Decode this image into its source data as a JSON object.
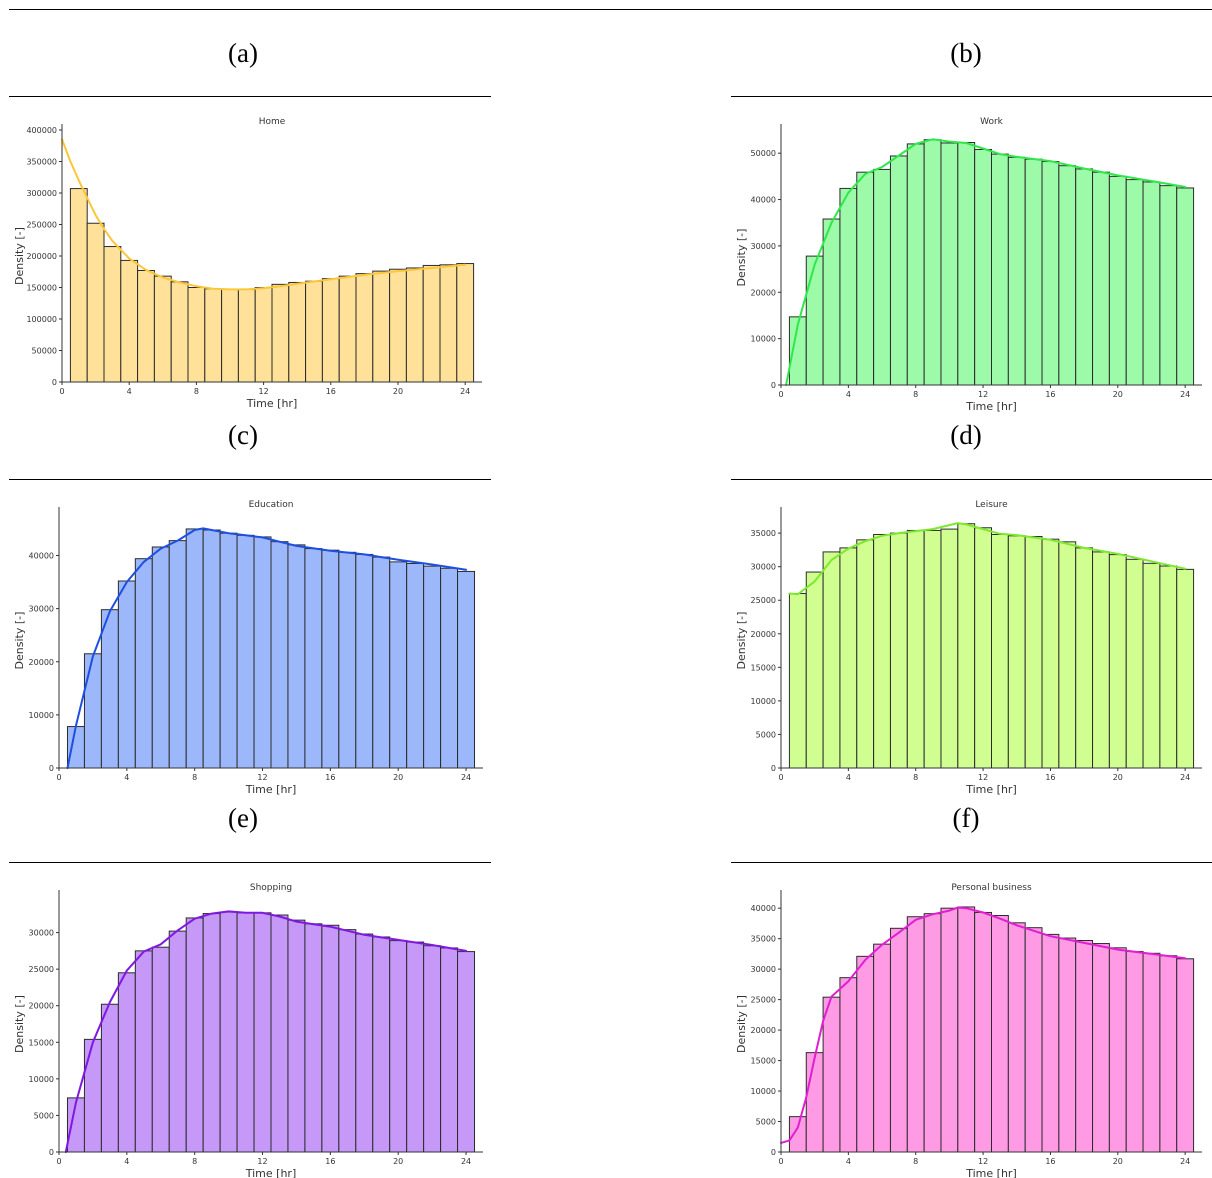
{
  "captions": [
    "(a)",
    "(b)",
    "(c)",
    "(d)",
    "(e)",
    "(f)"
  ],
  "chart_data": [
    {
      "type": "bar",
      "title": "Home",
      "xlabel": "Time [hr]",
      "ylabel": "Density [-]",
      "color": "#fcc63a",
      "fill": "#ffe19a",
      "xlim": [
        0,
        25
      ],
      "ylim": [
        0,
        400000
      ],
      "xticks": [
        0,
        4,
        8,
        12,
        16,
        20,
        24
      ],
      "yticks": [
        0,
        50000,
        100000,
        150000,
        200000,
        250000,
        300000,
        350000,
        400000
      ],
      "bin_start": 0.5,
      "bin_width": 1,
      "values": [
        307000,
        252000,
        215000,
        193000,
        177000,
        168000,
        159000,
        150000,
        148000,
        147000,
        147000,
        150000,
        155000,
        158000,
        160000,
        164000,
        168000,
        172000,
        176000,
        179000,
        181000,
        185000,
        186000,
        188000
      ],
      "kde_x": [
        0,
        0.5,
        1,
        1.5,
        2,
        2.5,
        3,
        4,
        5,
        6,
        7,
        8,
        9,
        10,
        11,
        12,
        13,
        14,
        16,
        18,
        20,
        22,
        24
      ],
      "kde_y": [
        385000,
        350000,
        320000,
        292000,
        265000,
        243000,
        224000,
        196000,
        178000,
        166000,
        158000,
        152000,
        148000,
        147000,
        147000,
        149000,
        152000,
        156000,
        163000,
        170000,
        176000,
        181000,
        186000
      ]
    },
    {
      "type": "bar",
      "title": "Work",
      "xlabel": "Time [hr]",
      "ylabel": "Density [-]",
      "color": "#2ee84a",
      "fill": "#9dfaa8",
      "xlim": [
        0,
        25
      ],
      "ylim": [
        0,
        55000
      ],
      "xticks": [
        0,
        4,
        8,
        12,
        16,
        20,
        24
      ],
      "yticks": [
        0,
        10000,
        20000,
        30000,
        40000,
        50000
      ],
      "bin_start": 0.5,
      "bin_width": 1,
      "values": [
        14700,
        27800,
        35800,
        42400,
        45900,
        46500,
        49400,
        52000,
        52900,
        52200,
        52300,
        50800,
        49800,
        49100,
        48700,
        48200,
        47300,
        46600,
        45900,
        45000,
        44300,
        43800,
        43000,
        42500
      ],
      "kde_x": [
        0.3,
        1,
        2,
        3,
        4,
        5,
        6,
        7,
        8,
        9,
        10,
        11,
        12,
        13,
        14,
        16,
        18,
        20,
        22,
        24
      ],
      "kde_y": [
        0,
        13000,
        26000,
        35000,
        41500,
        45500,
        47000,
        49500,
        52000,
        53000,
        52500,
        52200,
        51000,
        49800,
        49200,
        48300,
        46700,
        45200,
        44000,
        42700
      ]
    },
    {
      "type": "bar",
      "title": "Education",
      "xlabel": "Time [hr]",
      "ylabel": "Density [-]",
      "color": "#1f4fe0",
      "fill": "#9cb8fb",
      "xlim": [
        0,
        25
      ],
      "ylim": [
        0,
        48000
      ],
      "xticks": [
        0,
        4,
        8,
        12,
        16,
        20,
        24
      ],
      "yticks": [
        0,
        10000,
        20000,
        30000,
        40000
      ],
      "bin_start": 0.5,
      "bin_width": 1,
      "values": [
        7800,
        21500,
        29800,
        35200,
        39400,
        41600,
        42800,
        45000,
        44800,
        44200,
        43800,
        43500,
        42600,
        42000,
        41300,
        41000,
        40600,
        40200,
        39700,
        38800,
        38500,
        38000,
        37600,
        37000
      ],
      "kde_x": [
        0.5,
        1,
        2,
        3,
        4,
        5,
        6,
        7,
        8,
        8.5,
        9,
        10,
        11,
        12,
        13,
        14,
        16,
        18,
        20,
        22,
        24
      ],
      "kde_y": [
        0,
        8000,
        21000,
        29500,
        35000,
        38800,
        41300,
        42800,
        44800,
        45100,
        44800,
        44200,
        43800,
        43400,
        42600,
        41800,
        40900,
        40200,
        39200,
        38300,
        37300
      ]
    },
    {
      "type": "bar",
      "title": "Leisure",
      "xlabel": "Time [hr]",
      "ylabel": "Density [-]",
      "color": "#7ee830",
      "fill": "#d0fe90",
      "xlim": [
        0,
        25
      ],
      "ylim": [
        0,
        38000
      ],
      "xticks": [
        0,
        4,
        8,
        12,
        16,
        20,
        24
      ],
      "yticks": [
        0,
        5000,
        10000,
        15000,
        20000,
        25000,
        30000,
        35000
      ],
      "bin_start": 0.5,
      "bin_width": 1,
      "values": [
        26000,
        29200,
        32200,
        32800,
        34000,
        34800,
        35000,
        35400,
        35400,
        35600,
        36400,
        35800,
        34800,
        34600,
        34500,
        34100,
        33700,
        32800,
        32200,
        31800,
        31100,
        30500,
        30100,
        29600
      ],
      "kde_x": [
        0.5,
        1,
        2,
        3,
        4,
        5,
        6,
        7,
        8,
        9,
        10,
        10.5,
        11,
        12,
        13,
        14,
        16,
        18,
        20,
        22,
        24
      ],
      "kde_y": [
        26000,
        25900,
        27800,
        31000,
        32700,
        33800,
        34600,
        35000,
        35300,
        35600,
        36200,
        36500,
        36300,
        35600,
        34900,
        34700,
        34000,
        32800,
        31900,
        30800,
        29700
      ]
    },
    {
      "type": "bar",
      "title": "Shopping",
      "xlabel": "Time [hr]",
      "ylabel": "Density [-]",
      "color": "#7f18e0",
      "fill": "#c698f8",
      "xlim": [
        0,
        25
      ],
      "ylim": [
        0,
        35000
      ],
      "xticks": [
        0,
        4,
        8,
        12,
        16,
        20,
        24
      ],
      "yticks": [
        0,
        5000,
        10000,
        15000,
        20000,
        25000,
        30000
      ],
      "bin_start": 0.5,
      "bin_width": 1,
      "values": [
        7400,
        15400,
        20200,
        24500,
        27500,
        28000,
        30200,
        32000,
        32600,
        32800,
        32700,
        32700,
        32400,
        31700,
        31200,
        31000,
        30400,
        29800,
        29400,
        28900,
        28700,
        28200,
        27900,
        27400
      ],
      "kde_x": [
        0.4,
        1,
        2,
        3,
        4,
        5,
        6,
        7,
        8,
        9,
        10,
        11,
        12,
        13,
        14,
        16,
        18,
        20,
        22,
        24
      ],
      "kde_y": [
        0,
        6800,
        15000,
        20500,
        24800,
        27400,
        28400,
        30300,
        31900,
        32600,
        32900,
        32700,
        32700,
        32200,
        31500,
        30800,
        29700,
        29000,
        28300,
        27500
      ]
    },
    {
      "type": "bar",
      "title": "Personal business",
      "xlabel": "Time [hr]",
      "ylabel": "Density [-]",
      "color": "#e01fd1",
      "fill": "#ff9ae5",
      "xlim": [
        0,
        25
      ],
      "ylim": [
        0,
        42000
      ],
      "xticks": [
        0,
        4,
        8,
        12,
        16,
        20,
        24
      ],
      "yticks": [
        0,
        5000,
        10000,
        15000,
        20000,
        25000,
        30000,
        35000,
        40000
      ],
      "bin_start": 0.5,
      "bin_width": 1,
      "values": [
        5800,
        16300,
        25400,
        28600,
        32100,
        34100,
        36700,
        38600,
        39100,
        40000,
        40200,
        39300,
        38800,
        37600,
        36800,
        35700,
        35100,
        34700,
        34200,
        33500,
        32900,
        32600,
        32200,
        31700
      ],
      "kde_x": [
        0,
        0.5,
        1,
        1.5,
        2,
        2.5,
        3,
        4,
        5,
        6,
        7,
        8,
        9,
        10,
        10.5,
        11,
        12,
        13,
        14,
        16,
        18,
        20,
        22,
        24
      ],
      "kde_y": [
        1500,
        1900,
        4000,
        9000,
        15500,
        21500,
        25500,
        28000,
        31500,
        34000,
        36000,
        38100,
        39000,
        39600,
        40100,
        40000,
        39300,
        38300,
        37200,
        35400,
        34300,
        33200,
        32500,
        31800
      ]
    }
  ]
}
